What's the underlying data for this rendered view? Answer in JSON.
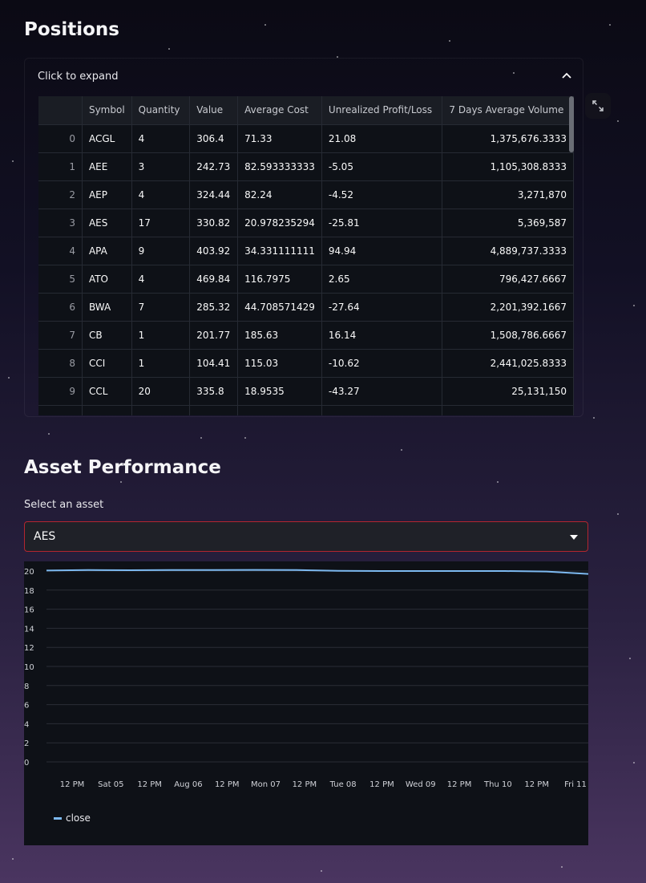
{
  "positions": {
    "title": "Positions",
    "expander_label": "Click to expand",
    "columns": [
      "",
      "Symbol",
      "Quantity",
      "Value",
      "Average Cost",
      "Unrealized Profit/Loss",
      "7 Days Average Volume"
    ],
    "rows": [
      [
        "0",
        "ACGL",
        "4",
        "306.4",
        "71.33",
        "21.08",
        "1,375,676.3333"
      ],
      [
        "1",
        "AEE",
        "3",
        "242.73",
        "82.593333333",
        "-5.05",
        "1,105,308.8333"
      ],
      [
        "2",
        "AEP",
        "4",
        "324.44",
        "82.24",
        "-4.52",
        "3,271,870"
      ],
      [
        "3",
        "AES",
        "17",
        "330.82",
        "20.978235294",
        "-25.81",
        "5,369,587"
      ],
      [
        "4",
        "APA",
        "9",
        "403.92",
        "34.331111111",
        "94.94",
        "4,889,737.3333"
      ],
      [
        "5",
        "ATO",
        "4",
        "469.84",
        "116.7975",
        "2.65",
        "796,427.6667"
      ],
      [
        "6",
        "BWA",
        "7",
        "285.32",
        "44.708571429",
        "-27.64",
        "2,201,392.1667"
      ],
      [
        "7",
        "CB",
        "1",
        "201.77",
        "185.63",
        "16.14",
        "1,508,786.6667"
      ],
      [
        "8",
        "CCI",
        "1",
        "104.41",
        "115.03",
        "-10.62",
        "2,441,025.8333"
      ],
      [
        "9",
        "CCL",
        "20",
        "335.8",
        "18.9535",
        "-43.27",
        "25,131,150"
      ]
    ]
  },
  "asset": {
    "title": "Asset Performance",
    "select_label": "Select an asset",
    "selected": "AES"
  },
  "colors": {
    "line": "#7db9f0",
    "select_border": "#b3262f"
  },
  "chart_data": {
    "type": "line",
    "x": [
      "12 PM",
      "Sat 05",
      "12 PM",
      "Aug 06",
      "12 PM",
      "Mon 07",
      "12 PM",
      "Tue 08",
      "12 PM",
      "Wed 09",
      "12 PM",
      "Thu 10",
      "12 PM",
      "Fri 11"
    ],
    "series": [
      {
        "name": "close",
        "values": [
          20.05,
          20.1,
          20.08,
          20.1,
          20.1,
          20.12,
          20.1,
          20.02,
          20.0,
          20.0,
          20.0,
          20.0,
          19.95,
          19.7
        ]
      }
    ],
    "yticks": [
      0,
      2,
      4,
      6,
      8,
      10,
      12,
      14,
      16,
      18,
      20
    ],
    "ylim": [
      0,
      20
    ],
    "legend": "bottom-left",
    "grid": true
  }
}
